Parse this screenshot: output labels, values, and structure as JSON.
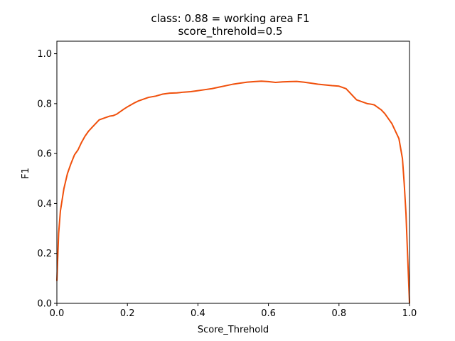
{
  "chart_data": {
    "type": "line",
    "title": "class: 0.88 = working area F1",
    "subtitle": "score_threhold=0.5",
    "xlabel": "Score_Threhold",
    "ylabel": "F1",
    "xlim": [
      0.0,
      1.0
    ],
    "ylim": [
      0.0,
      1.05
    ],
    "xticks": [
      "0.0",
      "0.2",
      "0.4",
      "0.6",
      "0.8",
      "1.0"
    ],
    "yticks": [
      "0.0",
      "0.2",
      "0.4",
      "0.6",
      "0.8",
      "1.0"
    ],
    "grid": false,
    "line_color": "#f0500c",
    "series": [
      {
        "x": [
          0.0,
          0.005,
          0.01,
          0.02,
          0.03,
          0.04,
          0.05,
          0.06,
          0.07,
          0.08,
          0.09,
          0.1,
          0.11,
          0.12,
          0.13,
          0.14,
          0.15,
          0.16,
          0.17,
          0.18,
          0.19,
          0.2,
          0.21,
          0.22,
          0.23,
          0.24,
          0.25,
          0.26,
          0.28,
          0.3,
          0.32,
          0.34,
          0.36,
          0.38,
          0.4,
          0.42,
          0.44,
          0.46,
          0.48,
          0.5,
          0.52,
          0.54,
          0.56,
          0.58,
          0.6,
          0.62,
          0.64,
          0.66,
          0.68,
          0.7,
          0.72,
          0.74,
          0.76,
          0.78,
          0.8,
          0.82,
          0.84,
          0.85,
          0.86,
          0.87,
          0.88,
          0.89,
          0.9,
          0.91,
          0.92,
          0.93,
          0.94,
          0.95,
          0.96,
          0.97,
          0.98,
          0.985,
          0.99,
          0.995,
          1.0
        ],
        "y": [
          0.09,
          0.28,
          0.37,
          0.46,
          0.52,
          0.56,
          0.595,
          0.615,
          0.645,
          0.67,
          0.69,
          0.705,
          0.72,
          0.735,
          0.74,
          0.745,
          0.75,
          0.752,
          0.758,
          0.768,
          0.778,
          0.787,
          0.795,
          0.803,
          0.81,
          0.815,
          0.82,
          0.825,
          0.83,
          0.838,
          0.842,
          0.843,
          0.846,
          0.848,
          0.852,
          0.856,
          0.86,
          0.866,
          0.872,
          0.878,
          0.882,
          0.886,
          0.888,
          0.89,
          0.888,
          0.885,
          0.887,
          0.888,
          0.889,
          0.886,
          0.882,
          0.878,
          0.875,
          0.872,
          0.87,
          0.86,
          0.83,
          0.815,
          0.81,
          0.805,
          0.8,
          0.798,
          0.795,
          0.785,
          0.775,
          0.76,
          0.74,
          0.72,
          0.69,
          0.66,
          0.58,
          0.48,
          0.36,
          0.18,
          0.0
        ]
      }
    ]
  }
}
